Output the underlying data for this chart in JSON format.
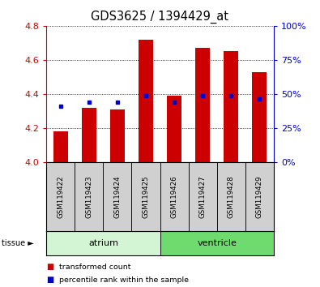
{
  "title": "GDS3625 / 1394429_at",
  "samples": [
    "GSM119422",
    "GSM119423",
    "GSM119424",
    "GSM119425",
    "GSM119426",
    "GSM119427",
    "GSM119428",
    "GSM119429"
  ],
  "red_values": [
    4.18,
    4.32,
    4.31,
    4.72,
    4.39,
    4.67,
    4.65,
    4.53
  ],
  "blue_values": [
    4.33,
    4.35,
    4.35,
    4.39,
    4.35,
    4.39,
    4.39,
    4.37
  ],
  "ylim_left": [
    4.0,
    4.8
  ],
  "ylim_right": [
    0,
    100
  ],
  "yticks_left": [
    4.0,
    4.2,
    4.4,
    4.6,
    4.8
  ],
  "yticks_right": [
    0,
    25,
    50,
    75,
    100
  ],
  "tissue_groups": [
    {
      "label": "atrium",
      "start": 0,
      "end": 3,
      "color": "#d4f5d4"
    },
    {
      "label": "ventricle",
      "start": 4,
      "end": 7,
      "color": "#6fdb6f"
    }
  ],
  "bar_width": 0.5,
  "bar_color": "#cc0000",
  "blue_color": "#0000cc",
  "plot_bg_color": "#ffffff",
  "tick_label_color_left": "#cc0000",
  "tick_label_color_right": "#0000cc",
  "title_fontsize": 10.5,
  "tick_fontsize": 8,
  "sample_box_color": "#d0d0d0"
}
